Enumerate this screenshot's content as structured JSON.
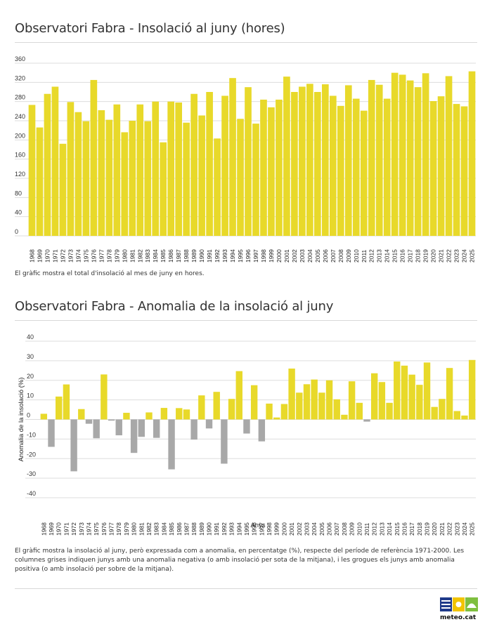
{
  "titles": {
    "chart1": "Observatori Fabra - Insolació al juny (hores)",
    "chart2": "Observatori Fabra - Anomalia de la insolació al juny"
  },
  "descriptions": {
    "chart1": "El gràfic mostra el total d'insolació al mes de juny en hores.",
    "chart2": "El gràfic mostra la insolació al juny, però expressada com a anomalia, en percentatge (%), respecte del període de referència 1971-2000. Les columnes grises indiquen junys amb una anomalia negativa (o amb insolació per sota de la mitjana), i les grogues els junys amb anomalia positiva (o amb insolació per sobre de la mitjana)."
  },
  "logo": {
    "text": "meteo.cat"
  },
  "colors": {
    "positive": "#e8d92a",
    "negative": "#a8a8a8",
    "grid": "#dddddd"
  },
  "chart_data": [
    {
      "type": "bar",
      "title": "Observatori Fabra - Insolació al juny (hores)",
      "xlabel": "",
      "ylabel": "",
      "ylim": [
        0,
        360
      ],
      "yticks": [
        0,
        40,
        80,
        120,
        160,
        200,
        240,
        280,
        320,
        360
      ],
      "grid": true,
      "categories": [
        "1968",
        "1969",
        "1970",
        "1971",
        "1972",
        "1973",
        "1974",
        "1975",
        "1976",
        "1977",
        "1978",
        "1979",
        "1980",
        "1981",
        "1982",
        "1983",
        "1984",
        "1985",
        "1986",
        "1987",
        "1988",
        "1989",
        "1990",
        "1991",
        "1992",
        "1993",
        "1994",
        "1995",
        "1996",
        "1997",
        "1998",
        "1999",
        "2000",
        "2001",
        "2002",
        "2003",
        "2004",
        "2005",
        "2006",
        "2007",
        "2008",
        "2009",
        "2010",
        "2011",
        "2012",
        "2013",
        "2014",
        "2015",
        "2016",
        "2017",
        "2018",
        "2019",
        "2020",
        "2021",
        "2022",
        "2023",
        "2024",
        "2025"
      ],
      "values": [
        273,
        226,
        296,
        311,
        192,
        279,
        258,
        239,
        325,
        262,
        242,
        274,
        216,
        240,
        274,
        239,
        280,
        195,
        280,
        278,
        236,
        296,
        251,
        300,
        203,
        292,
        329,
        244,
        310,
        234,
        284,
        268,
        284,
        332,
        300,
        311,
        317,
        300,
        316,
        292,
        271,
        314,
        286,
        261,
        325,
        315,
        286,
        340,
        336,
        324,
        310,
        339,
        281,
        291,
        333,
        275,
        270,
        343
      ]
    },
    {
      "type": "bar",
      "title": "Observatori Fabra - Anomalia de la insolació al juny",
      "xlabel": "Anys",
      "ylabel": "Anomalia de la insolació (%)",
      "ylim": [
        -40,
        40
      ],
      "yticks": [
        -40,
        -30,
        -20,
        -10,
        0,
        10,
        20,
        30,
        40
      ],
      "grid": true,
      "categories": [
        "1968",
        "1969",
        "1970",
        "1971",
        "1972",
        "1973",
        "1974",
        "1975",
        "1976",
        "1977",
        "1978",
        "1979",
        "1980",
        "1981",
        "1982",
        "1983",
        "1984",
        "1985",
        "1986",
        "1987",
        "1988",
        "1989",
        "1990",
        "1991",
        "1992",
        "1993",
        "1994",
        "1995",
        "1996",
        "1997",
        "1998",
        "1999",
        "2000",
        "2001",
        "2002",
        "2003",
        "2004",
        "2005",
        "2006",
        "2007",
        "2008",
        "2009",
        "2010",
        "2011",
        "2012",
        "2013",
        "2014",
        "2015",
        "2016",
        "2017",
        "2018",
        "2019",
        "2020",
        "2021",
        "2022",
        "2023",
        "2024",
        "2025"
      ],
      "values": [
        2.9,
        -14,
        11.7,
        17.9,
        -26.5,
        5.3,
        -2.2,
        -9.6,
        23,
        -0.6,
        -8.1,
        3.4,
        -17.1,
        -8.9,
        3.6,
        -9.4,
        5.9,
        -25.5,
        5.8,
        5.1,
        -10.3,
        12.3,
        -4.6,
        14.1,
        -22.6,
        10.5,
        24.7,
        -7.2,
        17.5,
        -11.2,
        8.1,
        1,
        7.9,
        26,
        13.7,
        18,
        20.4,
        13.7,
        20,
        10.3,
        2.4,
        19.5,
        8.5,
        -1.1,
        23.6,
        19.1,
        8.5,
        29.6,
        27.5,
        22.9,
        17.7,
        29.1,
        6.4,
        10.5,
        26.3,
        4.3,
        2,
        30.4
      ]
    }
  ]
}
